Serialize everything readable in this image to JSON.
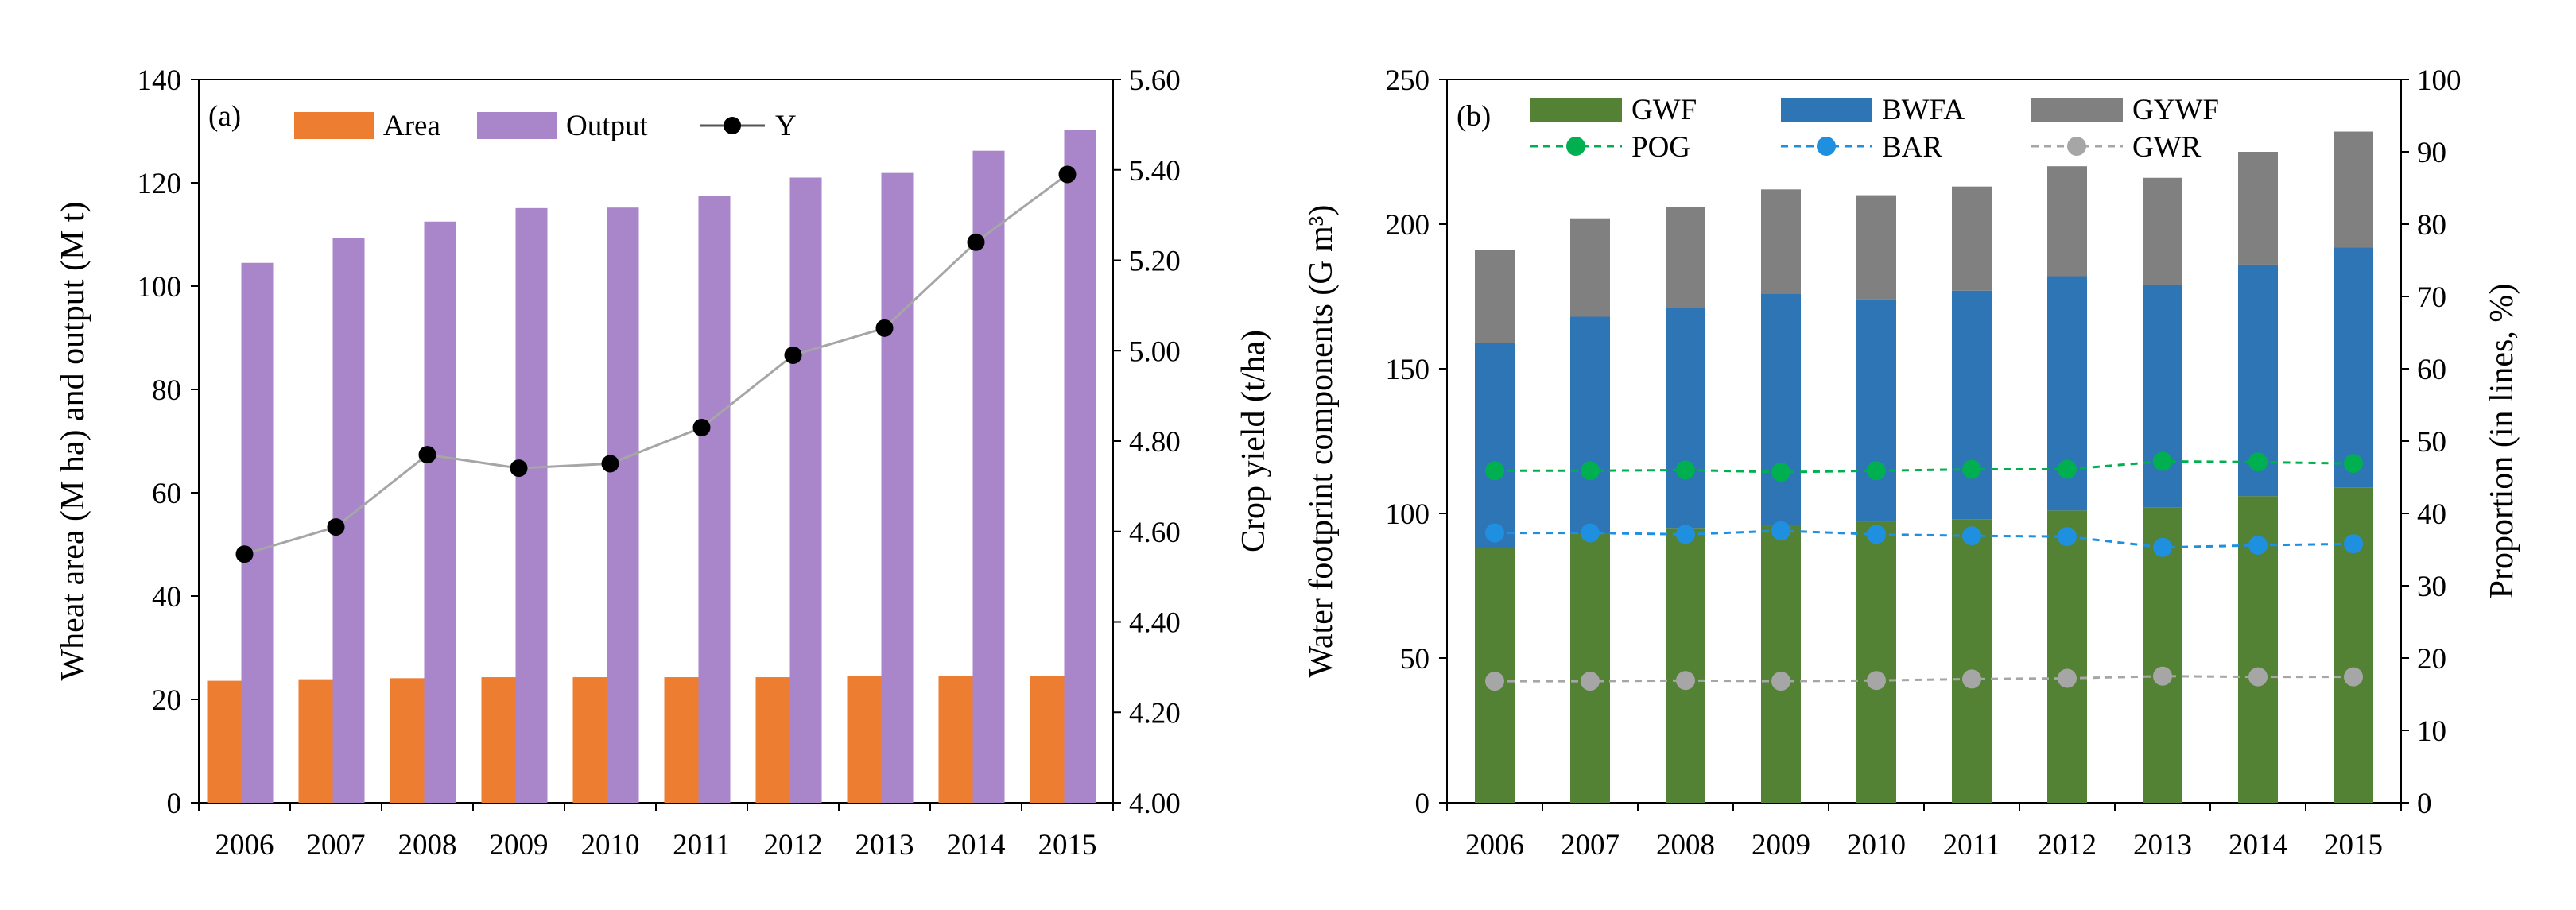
{
  "chart_data": [
    {
      "panel_label": "(a)",
      "type": "bar+line",
      "categories": [
        "2006",
        "2007",
        "2008",
        "2009",
        "2010",
        "2011",
        "2012",
        "2013",
        "2014",
        "2015"
      ],
      "ylabel": "Wheat area (M ha) and output (M t)",
      "y2label": "Crop yield (t/ha)",
      "ylim": [
        0,
        140
      ],
      "yticks": [
        "0",
        "20",
        "40",
        "60",
        "80",
        "100",
        "120",
        "140"
      ],
      "y2lim": [
        4.0,
        5.6
      ],
      "y2ticks": [
        "4.00",
        "4.20",
        "4.40",
        "4.60",
        "4.80",
        "5.00",
        "5.20",
        "5.40",
        "5.60"
      ],
      "series": [
        {
          "name": "Area",
          "kind": "bar",
          "axis": "left",
          "color": "#ED7D31",
          "values": [
            23.6,
            23.9,
            24.1,
            24.3,
            24.3,
            24.3,
            24.3,
            24.5,
            24.5,
            24.6
          ]
        },
        {
          "name": "Output",
          "kind": "bar",
          "axis": "left",
          "color": "#A985CA",
          "values": [
            104.5,
            109.3,
            112.5,
            115.1,
            115.2,
            117.4,
            121.0,
            121.9,
            126.2,
            130.2
          ]
        },
        {
          "name": "Y",
          "kind": "line",
          "axis": "right",
          "color": "#000000",
          "line_color": "#A6A6A6",
          "values": [
            4.55,
            4.61,
            4.77,
            4.74,
            4.75,
            4.83,
            4.99,
            5.05,
            5.24,
            5.39
          ]
        }
      ]
    },
    {
      "panel_label": "(b)",
      "type": "stacked-bar+line",
      "categories": [
        "2006",
        "2007",
        "2008",
        "2009",
        "2010",
        "2011",
        "2012",
        "2013",
        "2014",
        "2015"
      ],
      "ylabel": "Water footprint components (G m³)",
      "y2label": "Proportion (in lines, %)",
      "ylim": [
        0,
        250
      ],
      "yticks": [
        "0",
        "50",
        "100",
        "150",
        "200",
        "250"
      ],
      "y2lim": [
        0,
        100
      ],
      "y2ticks": [
        "0",
        "10",
        "20",
        "30",
        "40",
        "50",
        "60",
        "70",
        "80",
        "90",
        "100"
      ],
      "series": [
        {
          "name": "GWF",
          "kind": "stacked-bar",
          "axis": "left",
          "color": "#548235",
          "values": [
            88,
            93,
            95,
            96,
            97,
            98,
            101,
            102,
            106,
            109
          ]
        },
        {
          "name": "BWFA",
          "kind": "stacked-bar",
          "axis": "left",
          "color": "#2E75B6",
          "values": [
            71,
            75,
            76,
            80,
            77,
            79,
            81,
            77,
            80,
            83
          ]
        },
        {
          "name": "GYWF",
          "kind": "stacked-bar",
          "axis": "left",
          "color": "#808080",
          "values": [
            32,
            34,
            35,
            36,
            36,
            36,
            38,
            37,
            39,
            40
          ]
        },
        {
          "name": "POG",
          "kind": "line",
          "axis": "right",
          "color": "#00B050",
          "values": [
            45.9,
            45.9,
            46.0,
            45.7,
            45.9,
            46.1,
            46.1,
            47.2,
            47.1,
            46.9
          ]
        },
        {
          "name": "BAR",
          "kind": "line",
          "axis": "right",
          "color": "#1F8FE0",
          "values": [
            37.3,
            37.3,
            37.1,
            37.6,
            37.1,
            36.9,
            36.8,
            35.3,
            35.6,
            35.8
          ]
        },
        {
          "name": "GWR",
          "kind": "line",
          "axis": "right",
          "color": "#A6A6A6",
          "values": [
            16.8,
            16.8,
            16.9,
            16.8,
            16.9,
            17.1,
            17.2,
            17.5,
            17.4,
            17.4
          ]
        }
      ]
    }
  ]
}
